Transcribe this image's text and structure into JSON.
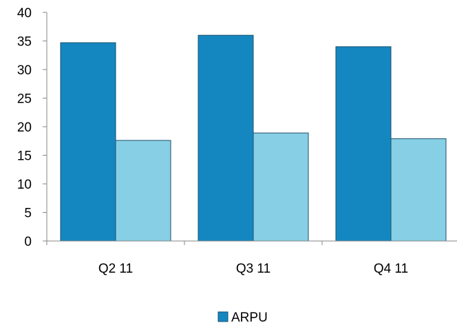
{
  "chart_data": {
    "type": "bar",
    "categories": [
      "Q2 11",
      "Q3 11",
      "Q4 11"
    ],
    "series": [
      {
        "name": "ARPU",
        "values": [
          34.7,
          36.0,
          34.0
        ],
        "color": "#1487c0"
      },
      {
        "values": [
          17.6,
          18.9,
          17.9
        ],
        "color": "#87cfe5"
      }
    ],
    "ylim": [
      0,
      40
    ],
    "yticks": [
      0,
      5,
      10,
      15,
      20,
      25,
      30,
      35,
      40
    ],
    "grid": false,
    "legend_position": "bottom",
    "bar_stroke": "#1b4f6b",
    "axis_color": "#868686"
  }
}
